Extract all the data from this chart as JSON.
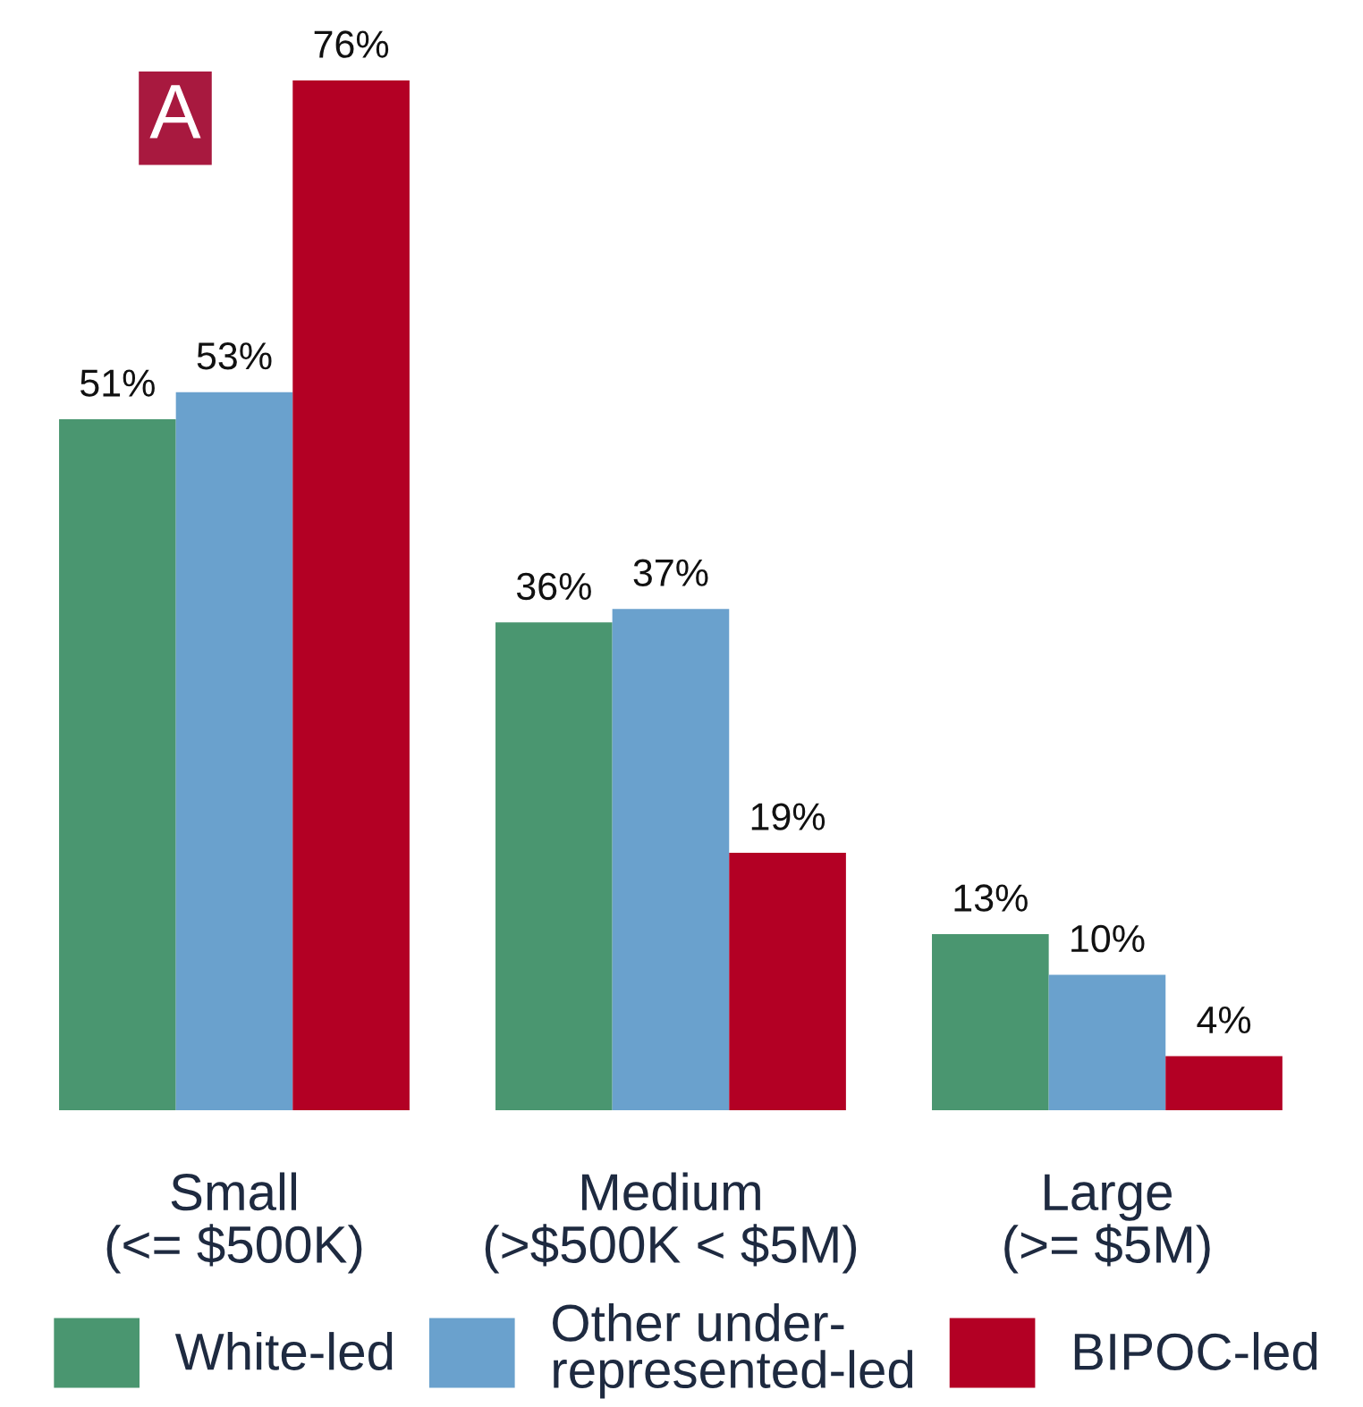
{
  "chart_data": {
    "type": "bar",
    "categories": [
      "Small\n(<= $500K)",
      "Medium\n(>$500K < $5M)",
      "Large\n(>= $5M)"
    ],
    "series": [
      {
        "name": "White-led",
        "color": "#4a9670",
        "values": [
          51,
          36,
          13
        ],
        "value_labels": [
          "51%",
          "36%",
          "13%"
        ]
      },
      {
        "name": "Other under-\nrepresented-led",
        "color": "#6aa1cd",
        "values": [
          53,
          37,
          10
        ],
        "value_labels": [
          "53%",
          "37%",
          "10%"
        ]
      },
      {
        "name": "BIPOC-led",
        "color": "#b30024",
        "values": [
          76,
          19,
          4
        ],
        "value_labels": [
          "76%",
          "19%",
          "4%"
        ]
      }
    ],
    "annotations": [
      "A"
    ],
    "legend": "bottom",
    "grid": false
  }
}
